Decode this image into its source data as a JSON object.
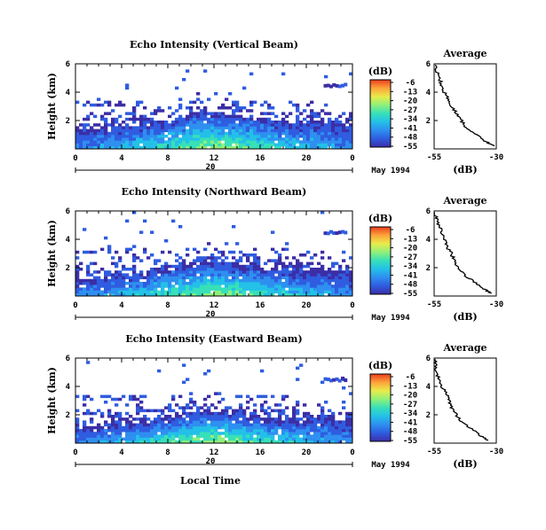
{
  "colors": {
    "background": "#ffffff",
    "colormap": [
      "#3b2ea6",
      "#2f5ce0",
      "#2e8ff0",
      "#23c0e8",
      "#37e0b8",
      "#8ff07a",
      "#e8ec4a",
      "#fda43a",
      "#ec3d1e"
    ]
  },
  "chart_data": [
    {
      "type": "heatmap",
      "title": "Echo Intensity (Vertical Beam)",
      "ylabel": "Height (km)",
      "x_ticks": [
        "0",
        "4",
        "8",
        "12",
        "16",
        "20",
        "0"
      ],
      "y_ticks": [
        "2",
        "4",
        "6"
      ],
      "xlim": [
        0,
        24
      ],
      "ylim": [
        0,
        6
      ],
      "date_axis_ticks": [
        "20"
      ],
      "date_label": "May 1994",
      "colorbar": {
        "unit": "(dB)",
        "ticks": [
          "-6",
          "-13",
          "-20",
          "-27",
          "-34",
          "-41",
          "-48",
          "-55"
        ]
      },
      "echo_top_km": [
        1.2,
        1.3,
        1.4,
        1.3,
        1.4,
        1.6,
        1.7,
        1.9,
        2.0,
        2.2,
        2.4,
        2.5,
        2.5,
        2.4,
        2.3,
        2.2,
        2.0,
        1.9,
        1.8,
        1.7,
        1.8,
        1.9,
        1.8,
        1.7,
        1.6
      ],
      "profile": {
        "title": "Average",
        "xlabel": "(dB)",
        "x_ticks": [
          "-55",
          "-30"
        ],
        "y_ticks": [
          "2",
          "4",
          "6"
        ],
        "xlim": [
          -55,
          -30
        ],
        "ylim": [
          0,
          6
        ],
        "height_km": [
          0.2,
          0.5,
          1.0,
          1.5,
          2.0,
          2.5,
          3.0,
          3.5,
          4.0,
          4.5,
          5.0,
          5.5,
          6.0
        ],
        "db": [
          -31,
          -34,
          -38,
          -42,
          -44,
          -46,
          -48,
          -49,
          -51,
          -52,
          -53,
          -54,
          -55
        ]
      }
    },
    {
      "type": "heatmap",
      "title": "Echo Intensity (Northward Beam)",
      "ylabel": "Height (km)",
      "x_ticks": [
        "0",
        "4",
        "8",
        "12",
        "16",
        "20",
        "0"
      ],
      "y_ticks": [
        "2",
        "4",
        "6"
      ],
      "xlim": [
        0,
        24
      ],
      "ylim": [
        0,
        6
      ],
      "date_axis_ticks": [
        "20"
      ],
      "date_label": "May 1994",
      "colorbar": {
        "unit": "(dB)",
        "ticks": [
          "-6",
          "-13",
          "-20",
          "-27",
          "-34",
          "-41",
          "-48",
          "-55"
        ]
      },
      "echo_top_km": [
        1.1,
        1.2,
        1.2,
        1.3,
        1.3,
        1.4,
        1.5,
        1.7,
        1.9,
        2.1,
        2.2,
        2.3,
        2.3,
        2.2,
        2.1,
        2.0,
        1.9,
        1.9,
        1.8,
        1.8,
        1.7,
        1.8,
        1.7,
        1.6,
        1.5
      ],
      "profile": {
        "title": "Average",
        "xlabel": "(dB)",
        "x_ticks": [
          "-55",
          "-30"
        ],
        "y_ticks": [
          "2",
          "4",
          "6"
        ],
        "xlim": [
          -55,
          -30
        ],
        "ylim": [
          0,
          6
        ],
        "height_km": [
          0.2,
          0.5,
          1.0,
          1.5,
          2.0,
          2.5,
          3.0,
          3.5,
          4.0,
          4.5,
          5.0,
          5.5,
          6.0
        ],
        "db": [
          -32,
          -35,
          -39,
          -43,
          -45,
          -47,
          -48,
          -50,
          -51,
          -52,
          -53,
          -54,
          -55
        ]
      }
    },
    {
      "type": "heatmap",
      "title": "Echo Intensity (Eastward Beam)",
      "ylabel": "Height (km)",
      "x_ticks": [
        "0",
        "4",
        "8",
        "12",
        "16",
        "20",
        "0"
      ],
      "y_ticks": [
        "2",
        "4",
        "6"
      ],
      "xlim": [
        0,
        24
      ],
      "ylim": [
        0,
        6
      ],
      "date_axis_ticks": [
        "20"
      ],
      "date_label": "May 1994",
      "xlabel": "Local Time",
      "colorbar": {
        "unit": "(dB)",
        "ticks": [
          "-6",
          "-13",
          "-20",
          "-27",
          "-34",
          "-41",
          "-48",
          "-55"
        ]
      },
      "echo_top_km": [
        1.0,
        1.1,
        1.2,
        1.2,
        1.3,
        1.4,
        1.5,
        1.6,
        1.8,
        2.0,
        2.1,
        2.2,
        2.2,
        2.1,
        2.0,
        1.9,
        1.8,
        1.8,
        1.7,
        1.7,
        1.6,
        1.7,
        1.6,
        1.5,
        1.4
      ],
      "profile": {
        "title": "Average",
        "xlabel": "(dB)",
        "x_ticks": [
          "-55",
          "-30"
        ],
        "y_ticks": [
          "2",
          "4",
          "6"
        ],
        "xlim": [
          -55,
          -30
        ],
        "ylim": [
          0,
          6
        ],
        "height_km": [
          0.2,
          0.5,
          1.0,
          1.5,
          2.0,
          2.5,
          3.0,
          3.5,
          4.0,
          4.5,
          5.0,
          5.5,
          6.0
        ],
        "db": [
          -33,
          -36,
          -40,
          -44,
          -46,
          -48,
          -49,
          -50,
          -52,
          -53,
          -54,
          -54,
          -55
        ]
      }
    }
  ]
}
